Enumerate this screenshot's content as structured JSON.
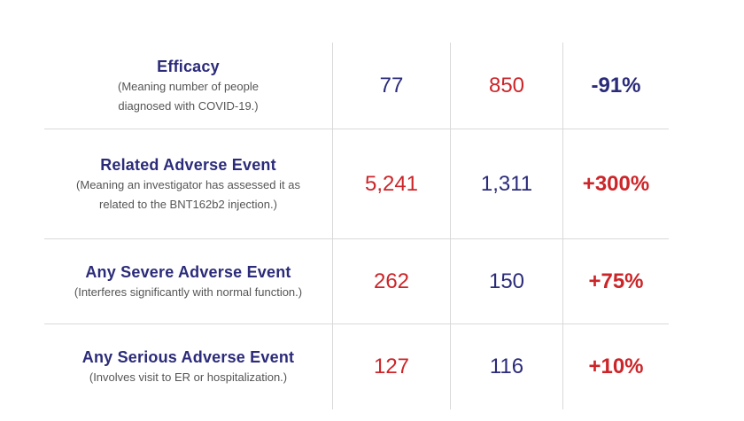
{
  "colors": {
    "blue": "#2b2b7a",
    "red": "#cc2529",
    "note_gray": "#555555",
    "rule": "#d9d9d9"
  },
  "chart_data": {
    "type": "table",
    "rows": [
      {
        "metric": "Efficacy",
        "note_lines": [
          "(Meaning number of people",
          "diagnosed with COVID-19.)"
        ],
        "col_a": "77",
        "col_b": "850",
        "change": "-91%",
        "col_a_color": "blue",
        "col_b_color": "red",
        "change_color": "blue"
      },
      {
        "metric": "Related Adverse Event",
        "note_lines": [
          "(Meaning an investigator has assessed it as",
          "related to the BNT162b2 injection.)"
        ],
        "col_a": "5,241",
        "col_b": "1,311",
        "change": "+300%",
        "col_a_color": "red",
        "col_b_color": "blue",
        "change_color": "red"
      },
      {
        "metric": "Any Severe Adverse Event",
        "note_lines": [
          "(Interferes significantly with normal function.)"
        ],
        "col_a": "262",
        "col_b": "150",
        "change": "+75%",
        "col_a_color": "red",
        "col_b_color": "blue",
        "change_color": "red"
      },
      {
        "metric": "Any Serious Adverse Event",
        "note_lines": [
          "(Involves visit to ER or hospitalization.)"
        ],
        "col_a": "127",
        "col_b": "116",
        "change": "+10%",
        "col_a_color": "red",
        "col_b_color": "blue",
        "change_color": "red"
      }
    ]
  }
}
